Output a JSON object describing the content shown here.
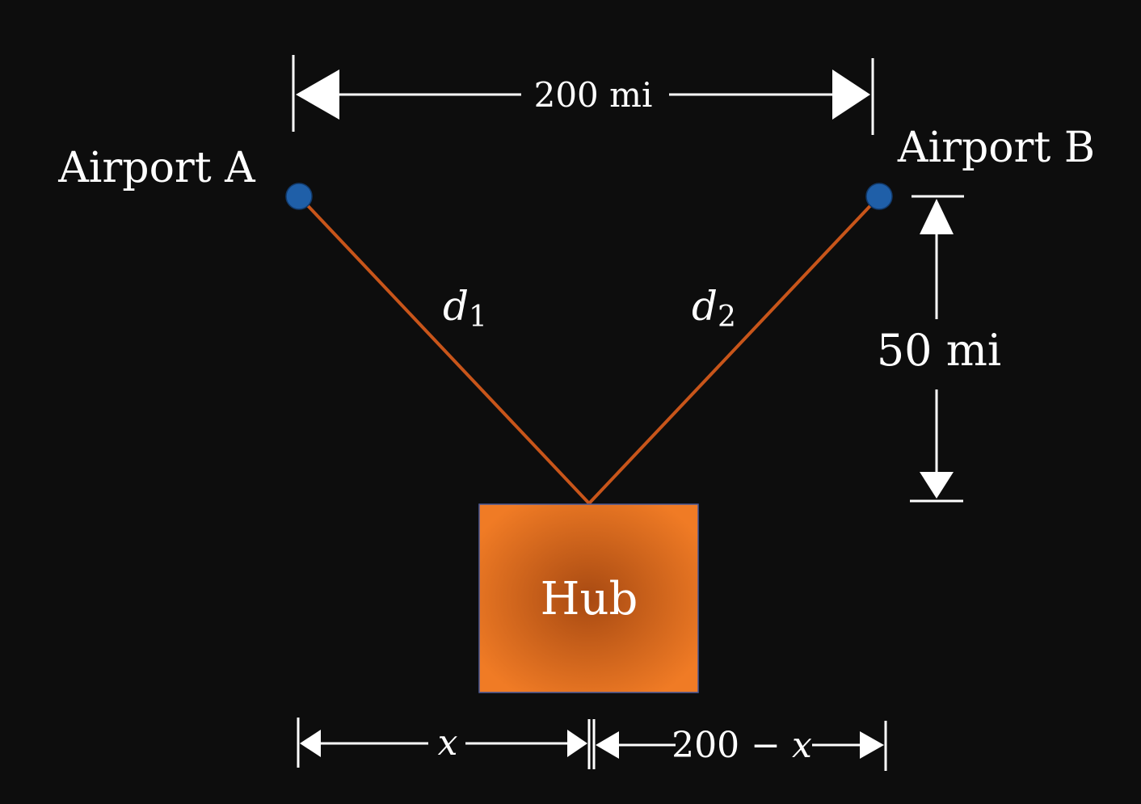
{
  "labels": {
    "airport_a": "Airport A",
    "airport_b": "Airport B",
    "hub": "Hub",
    "top_distance": "200 mi",
    "vertical_distance": "50 mi",
    "d1_base": "d",
    "d1_sub": "1",
    "d2_base": "d",
    "d2_sub": "2",
    "x_label": "x",
    "rest_prefix": "200 − ",
    "rest_var": "x"
  },
  "colors": {
    "background": "#0d0d0d",
    "airport_dot": "#1f5fa8",
    "route_line": "#c8551a",
    "hub_edge": "#f07b25",
    "hub_center": "#a84a12",
    "text": "#ffffff"
  }
}
